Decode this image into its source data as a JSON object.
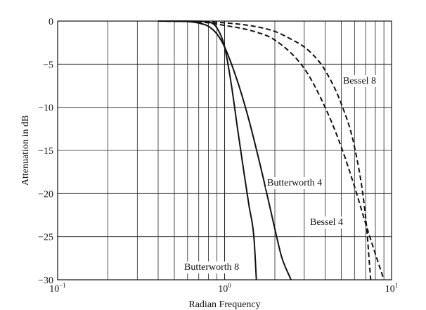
{
  "chart_data": {
    "type": "line",
    "title": "",
    "xlabel": "Radian Frequency",
    "ylabel": "Attenuation in dB",
    "x_scale": "log",
    "xlim": [
      0.1,
      10
    ],
    "ylim": [
      -30,
      0
    ],
    "grid": true,
    "legend": "none",
    "x_ticks": [
      {
        "value": 0.1,
        "base": "10",
        "exp": "−1"
      },
      {
        "value": 1,
        "base": "10",
        "exp": "0"
      },
      {
        "value": 10,
        "base": "10",
        "exp": "1"
      }
    ],
    "y_ticks": [
      {
        "value": 0,
        "label": "0"
      },
      {
        "value": -5,
        "label": "−5"
      },
      {
        "value": -10,
        "label": "−10"
      },
      {
        "value": -15,
        "label": "−15"
      },
      {
        "value": -20,
        "label": "−20"
      },
      {
        "value": -25,
        "label": "−25"
      },
      {
        "value": -30,
        "label": "−30"
      }
    ],
    "series": [
      {
        "name": "Butterworth 8",
        "style": "solid",
        "x": [
          0.4,
          0.6,
          0.7,
          0.8,
          0.9,
          1.0,
          1.1,
          1.2,
          1.3,
          1.4,
          1.5,
          1.55
        ],
        "y": [
          0,
          0,
          -0.02,
          -0.1,
          -0.8,
          -3,
          -7.5,
          -12.7,
          -17.3,
          -21.4,
          -25.2,
          -30
        ]
      },
      {
        "name": "Butterworth 4",
        "style": "solid",
        "x": [
          0.4,
          0.6,
          0.7,
          0.8,
          0.9,
          1.0,
          1.2,
          1.4,
          1.7,
          2.0,
          2.2,
          2.5
        ],
        "y": [
          0,
          -0.05,
          -0.23,
          -0.6,
          -1.5,
          -3,
          -7.1,
          -11.5,
          -18.1,
          -24.1,
          -27.4,
          -30
        ]
      },
      {
        "name": "Bessel 4",
        "style": "dashed",
        "x": [
          0.4,
          0.7,
          1.0,
          1.5,
          2.0,
          3.0,
          4.0,
          5.0,
          6.0,
          7.0,
          8.0,
          9.0
        ],
        "y": [
          0,
          -0.1,
          -0.5,
          -1.2,
          -2.2,
          -5.5,
          -10.0,
          -14.6,
          -19.2,
          -23.5,
          -27.0,
          -30
        ]
      },
      {
        "name": "Bessel 8",
        "style": "dashed",
        "x": [
          0.4,
          0.7,
          1.0,
          1.5,
          2.0,
          2.5,
          3.0,
          3.5,
          4.0,
          5.0,
          6.0,
          7.0,
          7.5
        ],
        "y": [
          0,
          -0.05,
          -0.2,
          -0.6,
          -1.2,
          -2.1,
          -3.0,
          -4.2,
          -5.7,
          -9.6,
          -14.6,
          -22.8,
          -30
        ]
      }
    ],
    "annotations": [
      {
        "text": "Bessel 8",
        "series": "Bessel 8"
      },
      {
        "text": "Butterworth 4",
        "series": "Butterworth 4"
      },
      {
        "text": "Bessel 4",
        "series": "Bessel 4"
      },
      {
        "text": "Butterworth 8",
        "series": "Butterworth 8"
      }
    ]
  }
}
